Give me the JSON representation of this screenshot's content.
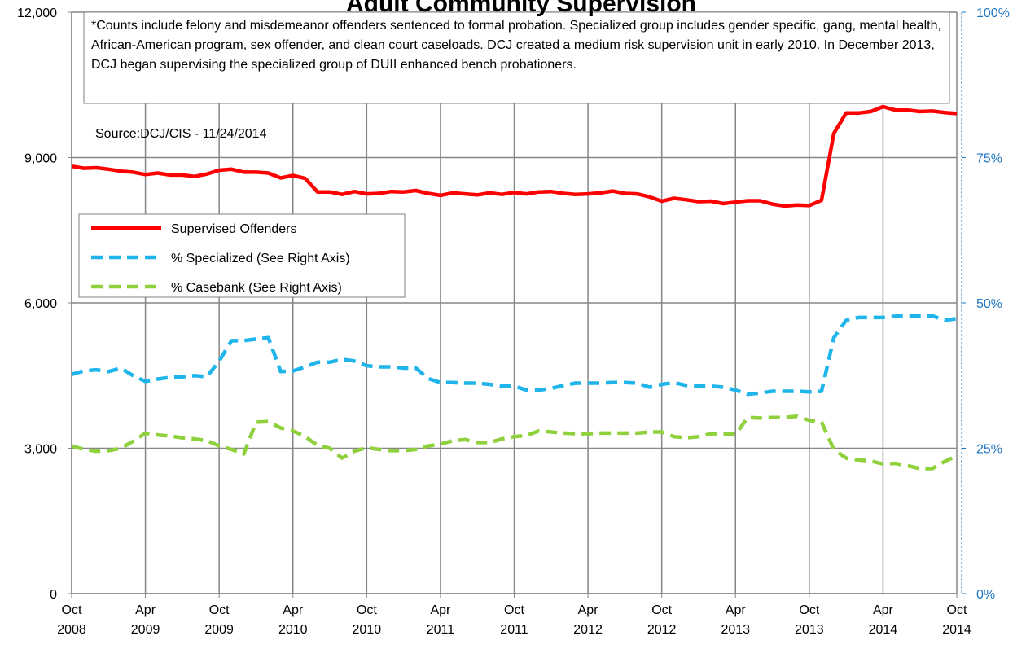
{
  "chart_data": {
    "type": "line",
    "title": "Adult Community Supervision",
    "note": "*Counts include felony and misdemeanor offenders sentenced to formal probation.  Specialized group includes gender specific, gang, mental health, African-American program, sex offender, and clean court caseloads.  DCJ created a medium risk supervision unit in early 2010.  In December 2013, DCJ began supervising the specialized group of DUII enhanced bench probationers.",
    "source": "Source:DCJ/CIS - 11/24/2014",
    "categories": [
      "Oct 2008",
      null,
      null,
      null,
      null,
      null,
      "Apr 2009",
      null,
      null,
      null,
      null,
      null,
      "Oct 2009",
      null,
      null,
      null,
      null,
      null,
      "Apr 2010",
      null,
      null,
      null,
      null,
      null,
      "Oct 2010",
      null,
      null,
      null,
      null,
      null,
      "Apr 2011",
      null,
      null,
      null,
      null,
      null,
      "Oct 2011",
      null,
      null,
      null,
      null,
      null,
      "Apr 2012",
      null,
      null,
      null,
      null,
      null,
      "Oct 2012",
      null,
      null,
      null,
      null,
      null,
      "Apr 2013",
      null,
      null,
      null,
      null,
      null,
      "Oct 2013",
      null,
      null,
      null,
      null,
      null,
      "Apr 2014",
      null,
      null,
      null,
      null,
      null,
      "Oct 2014"
    ],
    "series": [
      {
        "name": "Supervised Offenders",
        "color": "#ff0000",
        "dashed": false,
        "values": [
          8820,
          8780,
          8790,
          8760,
          8720,
          8700,
          8650,
          8680,
          8640,
          8640,
          8610,
          8660,
          8740,
          8760,
          8700,
          8700,
          8680,
          8580,
          8630,
          8570,
          8290,
          8290,
          8240,
          8300,
          8250,
          8260,
          8300,
          8290,
          8320,
          8260,
          8220,
          8270,
          8250,
          8230,
          8270,
          8240,
          8280,
          8250,
          8290,
          8300,
          8260,
          8240,
          8250,
          8270,
          8310,
          8260,
          8250,
          8190,
          8100,
          8160,
          8130,
          8090,
          8100,
          8050,
          8080,
          8110,
          8110,
          8040,
          8000,
          8020,
          8010,
          8120,
          9500,
          9920,
          9920,
          9950,
          10050,
          9980,
          9980,
          9950,
          9960,
          9930,
          9910
        ]
      },
      {
        "name": "% Specialized (See Right Axis)",
        "color": "#1fb4ea",
        "dashed": true,
        "axis": "y2",
        "values": [
          37.7,
          38.3,
          38.5,
          38.2,
          38.8,
          37.5,
          36.5,
          36.9,
          37.2,
          37.3,
          37.5,
          37.3,
          40.0,
          43.5,
          43.5,
          43.8,
          44.0,
          38.2,
          38.3,
          39.0,
          39.8,
          39.8,
          40.3,
          40.0,
          39.2,
          39.0,
          39.0,
          38.8,
          38.8,
          37.0,
          36.3,
          36.3,
          36.2,
          36.2,
          36.0,
          35.7,
          35.7,
          35.0,
          35.0,
          35.3,
          35.8,
          36.2,
          36.2,
          36.2,
          36.3,
          36.3,
          36.2,
          35.5,
          36.0,
          36.3,
          35.8,
          35.7,
          35.7,
          35.5,
          35.0,
          34.3,
          34.5,
          34.8,
          34.8,
          34.8,
          34.7,
          34.8,
          44.0,
          47.0,
          47.5,
          47.5,
          47.5,
          47.7,
          47.8,
          47.8,
          47.8,
          47.0,
          47.3
        ]
      },
      {
        "name": "% Casebank (See Right Axis)",
        "color": "#8fd13c",
        "dashed": true,
        "axis": "y2",
        "values": [
          25.4,
          24.8,
          24.5,
          24.6,
          25.0,
          26.2,
          27.6,
          27.3,
          27.1,
          26.8,
          26.6,
          26.3,
          25.4,
          24.8,
          24.0,
          29.5,
          29.6,
          28.5,
          28.0,
          27.0,
          25.5,
          25.0,
          23.3,
          24.5,
          25.1,
          24.8,
          24.6,
          24.6,
          24.8,
          25.4,
          25.7,
          26.3,
          26.5,
          26.0,
          26.0,
          26.6,
          27.0,
          27.2,
          28.0,
          27.8,
          27.6,
          27.5,
          27.5,
          27.6,
          27.6,
          27.6,
          27.6,
          27.8,
          27.8,
          27.0,
          26.8,
          27.0,
          27.5,
          27.5,
          27.4,
          30.3,
          30.2,
          30.3,
          30.3,
          30.5,
          29.8,
          29.5,
          24.8,
          23.3,
          23.0,
          22.8,
          22.3,
          22.4,
          22.0,
          21.5,
          21.5,
          22.7,
          23.7
        ]
      }
    ],
    "ylim": [
      0,
      12000
    ],
    "yticks": [
      0,
      {
        "value": 3000,
        "label": "3,000"
      },
      {
        "value": 6000,
        "label": "6,000"
      },
      {
        "value": 9000,
        "label": "9,000"
      },
      {
        "value": 12000,
        "label": "12,000"
      }
    ],
    "y2lim": [
      0,
      100
    ],
    "y2ticks": [
      {
        "value": 0,
        "label": "0%"
      },
      {
        "value": 25,
        "label": "25%"
      },
      {
        "value": 50,
        "label": "50%"
      },
      {
        "value": 75,
        "label": "75%"
      },
      {
        "value": 100,
        "label": "100%"
      }
    ],
    "y2_color": "#1f77c4",
    "grid": true
  }
}
